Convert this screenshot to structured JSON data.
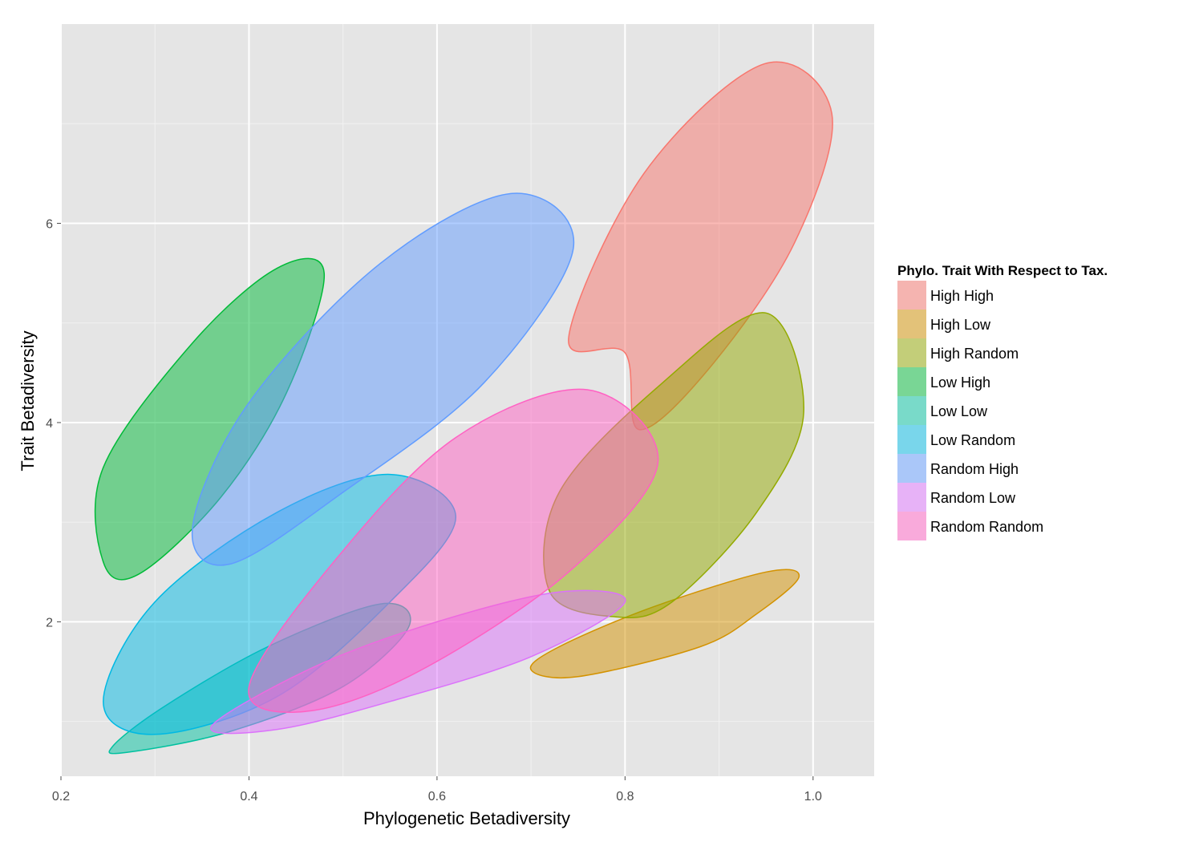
{
  "chart_data": {
    "type": "scatter",
    "subtype": "ellipse-overlay",
    "title": "",
    "xlabel": "Phylogenetic Betadiversity",
    "ylabel": "Trait Betadiversity",
    "xlim": [
      0.2,
      1.065
    ],
    "ylim": [
      0.45,
      8.0
    ],
    "x_ticks": [
      0.2,
      0.4,
      0.6,
      0.8,
      1.0
    ],
    "x_tick_labels": [
      "0.2",
      "0.4",
      "0.6",
      "0.8",
      "1.0"
    ],
    "y_ticks": [
      2,
      4,
      6
    ],
    "y_tick_labels": [
      "2",
      "4",
      "6"
    ],
    "grid": true,
    "background": "#e5e5e5",
    "fill_opacity": 0.5,
    "legend": {
      "title": "Phylo. Trait With Respect to Tax.",
      "position": "right"
    },
    "series": [
      {
        "name": "High High",
        "color": "#F8766D",
        "outline": [
          [
            0.8,
            4.7
          ],
          [
            0.815,
            3.93
          ],
          [
            0.89,
            4.55
          ],
          [
            0.98,
            5.8
          ],
          [
            1.02,
            7.1
          ],
          [
            0.948,
            7.6
          ],
          [
            0.82,
            6.5
          ],
          [
            0.74,
            4.85
          ]
        ]
      },
      {
        "name": "High Low",
        "color": "#D39200",
        "outline": [
          [
            0.75,
            1.45
          ],
          [
            0.88,
            1.75
          ],
          [
            0.94,
            2.08
          ],
          [
            0.985,
            2.45
          ],
          [
            0.95,
            2.5
          ],
          [
            0.83,
            2.15
          ],
          [
            0.73,
            1.75
          ],
          [
            0.7,
            1.52
          ]
        ]
      },
      {
        "name": "High Random",
        "color": "#93AA00",
        "outline": [
          [
            0.79,
            2.05
          ],
          [
            0.85,
            2.2
          ],
          [
            0.94,
            3.1
          ],
          [
            0.99,
            4.1
          ],
          [
            0.95,
            5.1
          ],
          [
            0.84,
            4.4
          ],
          [
            0.73,
            3.3
          ],
          [
            0.72,
            2.3
          ]
        ]
      },
      {
        "name": "Low High",
        "color": "#00BA38",
        "outline": [
          [
            0.283,
            2.48
          ],
          [
            0.37,
            3.25
          ],
          [
            0.44,
            4.3
          ],
          [
            0.48,
            5.5
          ],
          [
            0.43,
            5.55
          ],
          [
            0.34,
            4.8
          ],
          [
            0.245,
            3.55
          ],
          [
            0.245,
            2.6
          ]
        ]
      },
      {
        "name": "Low Low",
        "color": "#00C19F",
        "outline": [
          [
            0.27,
            0.69
          ],
          [
            0.38,
            0.9
          ],
          [
            0.5,
            1.35
          ],
          [
            0.57,
            1.95
          ],
          [
            0.54,
            2.18
          ],
          [
            0.42,
            1.75
          ],
          [
            0.31,
            1.15
          ],
          [
            0.255,
            0.75
          ]
        ]
      },
      {
        "name": "Low Random",
        "color": "#00B9E3",
        "outline": [
          [
            0.3,
            0.87
          ],
          [
            0.43,
            1.25
          ],
          [
            0.55,
            2.2
          ],
          [
            0.62,
            3.05
          ],
          [
            0.55,
            3.48
          ],
          [
            0.43,
            3.1
          ],
          [
            0.3,
            2.2
          ],
          [
            0.245,
            1.2
          ]
        ]
      },
      {
        "name": "Random High",
        "color": "#619CFF",
        "outline": [
          [
            0.38,
            2.58
          ],
          [
            0.5,
            3.3
          ],
          [
            0.65,
            4.4
          ],
          [
            0.745,
            5.75
          ],
          [
            0.68,
            6.3
          ],
          [
            0.54,
            5.6
          ],
          [
            0.4,
            4.2
          ],
          [
            0.34,
            2.95
          ]
        ]
      },
      {
        "name": "Random Low",
        "color": "#DB72FB",
        "outline": [
          [
            0.43,
            0.92
          ],
          [
            0.55,
            1.2
          ],
          [
            0.7,
            1.65
          ],
          [
            0.8,
            2.2
          ],
          [
            0.73,
            2.3
          ],
          [
            0.6,
            2.0
          ],
          [
            0.47,
            1.55
          ],
          [
            0.36,
            0.95
          ]
        ]
      },
      {
        "name": "Random Random",
        "color": "#FF61C3",
        "outline": [
          [
            0.46,
            1.1
          ],
          [
            0.58,
            1.5
          ],
          [
            0.74,
            2.5
          ],
          [
            0.835,
            3.6
          ],
          [
            0.76,
            4.33
          ],
          [
            0.62,
            3.85
          ],
          [
            0.49,
            2.6
          ],
          [
            0.4,
            1.35
          ]
        ]
      }
    ]
  }
}
